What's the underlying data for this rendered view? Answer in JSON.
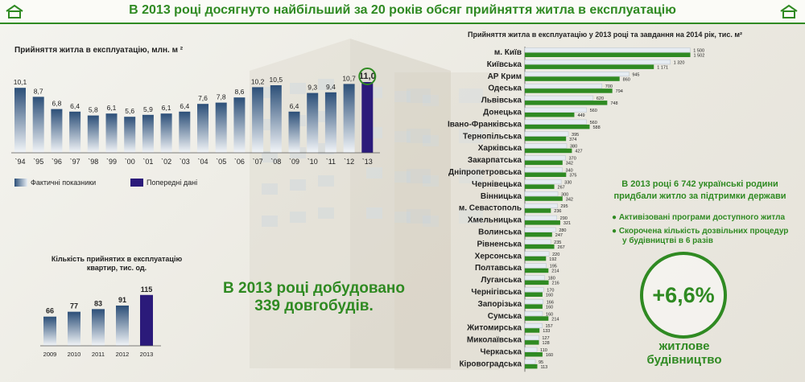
{
  "header": {
    "title": "В 2013 році досягнуто найбільший за 20 років обсяг прийняття житла в експлуатацію"
  },
  "chart_data": [
    {
      "type": "bar",
      "title": "Прийняття житла в експлуатацію, млн. м ²",
      "categories": [
        "`94",
        "`95",
        "`96",
        "`97",
        "`98",
        "`99",
        "`00",
        "`01",
        "`02",
        "`03",
        "`04",
        "`05",
        "`06",
        "`07",
        "`08",
        "`09",
        "`10",
        "`11",
        "`12",
        "`13"
      ],
      "values": [
        10.1,
        8.7,
        6.8,
        6.4,
        5.8,
        6.1,
        5.6,
        5.9,
        6.1,
        6.4,
        7.6,
        7.8,
        8.6,
        10.2,
        10.5,
        6.4,
        9.3,
        9.4,
        10.7,
        11.0
      ],
      "value_labels": [
        "10,1",
        "8,7",
        "6,8",
        "6,4",
        "5,8",
        "6,1",
        "5,6",
        "5,9",
        "6,1",
        "6,4",
        "7,6",
        "7,8",
        "8,6",
        "10,2",
        "10,5",
        "6,4",
        "9,3",
        "9,4",
        "10,7",
        "11,0"
      ],
      "highlight_index": 19,
      "legend": [
        {
          "name": "Фактичні показники",
          "color": "#2c4f78"
        },
        {
          "name": "Попередні дані",
          "color": "#2b1a7a"
        }
      ],
      "ylim": [
        0,
        12
      ]
    },
    {
      "type": "bar",
      "title": "Кількість прийнятих в експлуатацію квартир, тис. од.",
      "title_lines": [
        "Кількість прийнятих в експлуатацію",
        "квартир, тис. од."
      ],
      "categories": [
        "2009",
        "2010",
        "2011",
        "2012",
        "2013"
      ],
      "values": [
        66,
        77,
        83,
        91,
        115
      ],
      "highlight_index": 4,
      "ylim": [
        0,
        130
      ]
    },
    {
      "type": "bar",
      "orientation": "horizontal",
      "title": "Прийняття житла в експлуатацію у  2013 році та завдання на 2014 рік, тис. м²",
      "categories": [
        "м. Київ",
        "Київська",
        "АР Крим",
        "Одеська",
        "Львівська",
        "Донецька",
        "Івано-Франківська",
        "Тернопільська",
        "Харківська",
        "Закарпатська",
        "Дніпропетровська",
        "Чернівецька",
        "Вінницька",
        "м. Севастополь",
        "Хмельницька",
        "Волинська",
        "Рівненська",
        "Херсонська",
        "Полтавська",
        "Луганська",
        "Чернігівська",
        "Запорізька",
        "Сумська",
        "Житомирська",
        "Миколаївська",
        "Черкаська",
        "Кіровоградська"
      ],
      "series": [
        {
          "name": "",
          "color": "#e6ecf2",
          "values": [
            1500,
            1320,
            945,
            700,
            620,
            560,
            560,
            395,
            380,
            370,
            340,
            330,
            300,
            295,
            290,
            280,
            235,
            220,
            195,
            180,
            170,
            166,
            160,
            157,
            127,
            110,
            95
          ],
          "labels": [
            "1 500",
            "1 320",
            "945",
            "700",
            "620",
            "560",
            "560",
            "395",
            "380",
            "370",
            "340",
            "330",
            "300",
            "295",
            "290",
            "280",
            "235",
            "220",
            "195",
            "180",
            "170",
            "166",
            "160",
            "157",
            "127",
            "110",
            "95"
          ]
        },
        {
          "name": "",
          "color": "#2f8a22",
          "values": [
            1502,
            1171,
            860,
            794,
            748,
            449,
            588,
            374,
            427,
            342,
            375,
            267,
            342,
            236,
            321,
            247,
            267,
            192,
            214,
            216,
            160,
            160,
            214,
            133,
            128,
            160,
            113
          ],
          "labels": [
            "1 502",
            "1 171",
            "860",
            "794",
            "748",
            "449",
            "588",
            "374",
            "427",
            "342",
            "375",
            "267",
            "342",
            "236",
            "321",
            "247",
            "267",
            "192",
            "214",
            "216",
            "160",
            "160",
            "214",
            "133",
            "128",
            "160",
            "113"
          ]
        }
      ],
      "xlim": [
        0,
        1520
      ]
    }
  ],
  "notes": {
    "completed": [
      "В 2013 році добудовано",
      "339 довгобудів."
    ],
    "support": [
      "В 2013 році 6 742 українські родини",
      "придбали житло за підтримки держави"
    ],
    "bullets": [
      "Активізовані програми доступного житла",
      "Скорочена кількість дозвільних процедур",
      "у будівництві  в 6 разів"
    ]
  },
  "growth": {
    "value": "+6,6%",
    "caption_lines": [
      "житлове",
      "будівництво"
    ]
  },
  "colors": {
    "accent": "#2f8a22"
  }
}
